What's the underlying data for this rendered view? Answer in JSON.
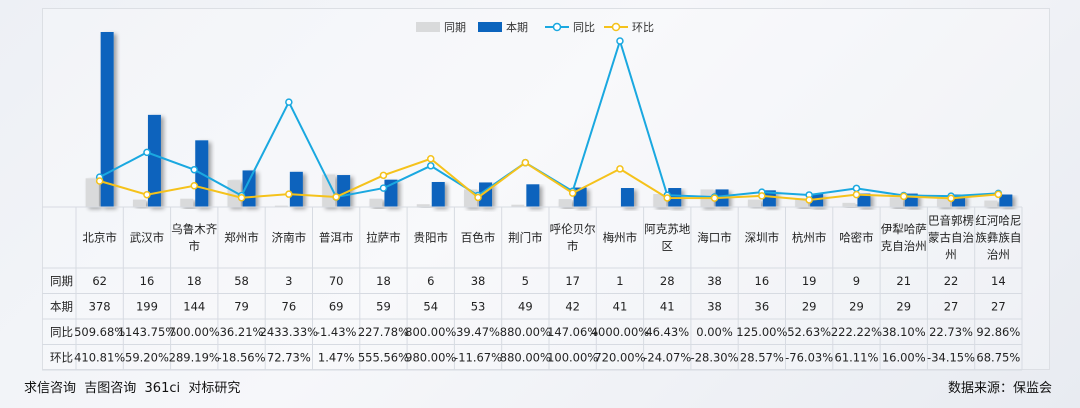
{
  "chart_data": {
    "type": "bar",
    "legend": {
      "position": "top-center",
      "items": [
        "同期",
        "本期",
        "同比",
        "环比"
      ]
    },
    "colors": {
      "prior": "#d9dadb",
      "current": "#0b64bd",
      "yoy": "#1aa8e0",
      "mom": "#f5c21b"
    },
    "categories": [
      [
        "北京市"
      ],
      [
        "武汉市"
      ],
      [
        "乌鲁木齐",
        "市"
      ],
      [
        "郑州市"
      ],
      [
        "济南市"
      ],
      [
        "普洱市"
      ],
      [
        "拉萨市"
      ],
      [
        "贵阳市"
      ],
      [
        "百色市"
      ],
      [
        "荆门市"
      ],
      [
        "呼伦贝尔",
        "市"
      ],
      [
        "梅州市"
      ],
      [
        "阿克苏地",
        "区"
      ],
      [
        "海口市"
      ],
      [
        "深圳市"
      ],
      [
        "杭州市"
      ],
      [
        "哈密市"
      ],
      [
        "伊犁哈萨",
        "克自治州"
      ],
      [
        "巴音郭楞",
        "蒙古自治",
        "州"
      ],
      [
        "红河哈尼",
        "族彝族自",
        "治州"
      ]
    ],
    "series": [
      {
        "name": "同期",
        "type": "bar",
        "values": [
          62,
          16,
          18,
          58,
          3,
          70,
          18,
          6,
          38,
          5,
          17,
          1,
          28,
          38,
          16,
          19,
          9,
          21,
          22,
          14
        ]
      },
      {
        "name": "本期",
        "type": "bar",
        "values": [
          378,
          199,
          144,
          79,
          76,
          69,
          59,
          54,
          53,
          49,
          42,
          41,
          41,
          38,
          36,
          29,
          29,
          29,
          27,
          27
        ]
      },
      {
        "name": "同比",
        "type": "line",
        "unit": "%",
        "values": [
          509.68,
          1143.75,
          700.0,
          36.21,
          2433.33,
          -1.43,
          227.78,
          800.0,
          39.47,
          880.0,
          147.06,
          4000.0,
          46.43,
          0.0,
          125.0,
          52.63,
          222.22,
          38.1,
          22.73,
          92.86
        ]
      },
      {
        "name": "环比",
        "type": "line",
        "unit": "%",
        "values": [
          410.81,
          59.2,
          289.19,
          -18.56,
          72.73,
          1.47,
          555.56,
          980.0,
          -11.67,
          880.0,
          100.0,
          720.0,
          -24.07,
          -28.3,
          28.57,
          -76.03,
          61.11,
          16.0,
          -34.15,
          68.75
        ]
      }
    ],
    "table": {
      "row_labels": [
        "同期",
        "本期",
        "同比",
        "环比"
      ],
      "rows": [
        [
          "62",
          "16",
          "18",
          "58",
          "3",
          "70",
          "18",
          "6",
          "38",
          "5",
          "17",
          "1",
          "28",
          "38",
          "16",
          "19",
          "9",
          "21",
          "22",
          "14"
        ],
        [
          "378",
          "199",
          "144",
          "79",
          "76",
          "69",
          "59",
          "54",
          "53",
          "49",
          "42",
          "41",
          "41",
          "38",
          "36",
          "29",
          "29",
          "29",
          "27",
          "27"
        ],
        [
          "509.68%",
          "1143.75%",
          "700.00%",
          "36.21%",
          "2433.33%",
          "-1.43%",
          "227.78%",
          "800.00%",
          "39.47%",
          "880.00%",
          "147.06%",
          "4000.00%",
          "46.43%",
          "0.00%",
          "125.00%",
          "52.63%",
          "222.22%",
          "38.10%",
          "22.73%",
          "92.86%"
        ],
        [
          "410.81%",
          "59.20%",
          "289.19%",
          "-18.56%",
          "72.73%",
          "1.47%",
          "555.56%",
          "980.00%",
          "-11.67%",
          "880.00%",
          "100.00%",
          "720.00%",
          "-24.07%",
          "-28.30%",
          "28.57%",
          "-76.03%",
          "61.11%",
          "16.00%",
          "-34.15%",
          "68.75%"
        ]
      ]
    },
    "grid": false
  },
  "footer": {
    "left": "求信咨询  吉图咨询  361ci  对标研究",
    "right": "数据来源：保监会"
  }
}
